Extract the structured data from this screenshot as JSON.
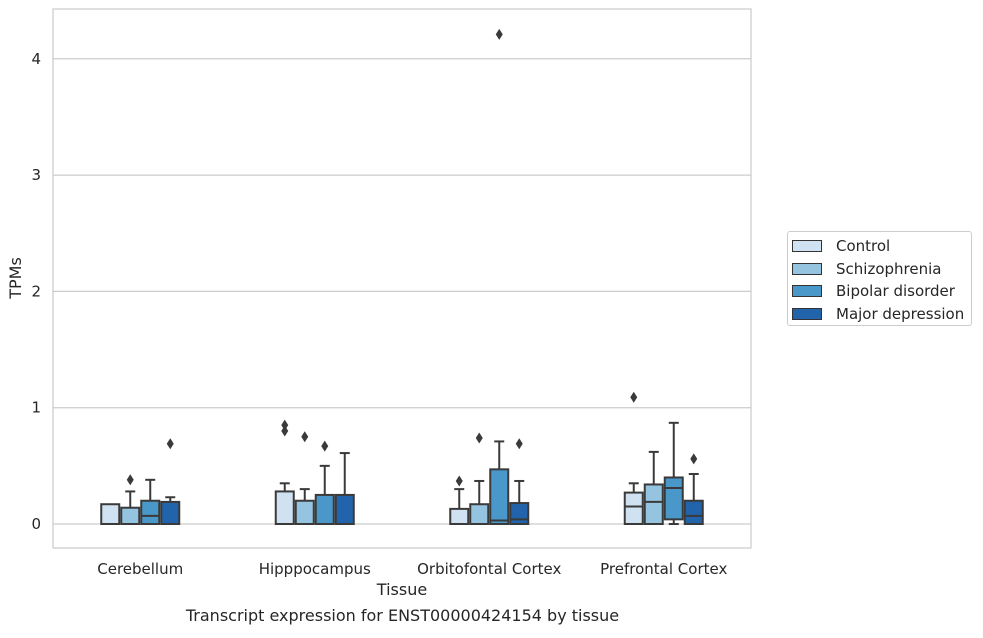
{
  "chart_data": {
    "type": "box",
    "xlabel": "Tissue",
    "ylabel": "TPMs",
    "caption": "Transcript expression for ENST00000424154 by tissue",
    "ylim": [
      -0.2,
      4.3
    ],
    "yticks": [
      0,
      1,
      2,
      3,
      4
    ],
    "grid": "horizontal",
    "legend_position": "right",
    "categories": [
      "Cerebellum",
      "Hipppocampus",
      "Orbitofontal Cortex",
      "Prefrontal Cortex"
    ],
    "series": [
      {
        "name": "Control",
        "color": "#d0e1f2",
        "boxes": [
          {
            "whislo": 0,
            "q1": 0,
            "med": 0,
            "q3": 0.17,
            "whishi": 0.17,
            "fliers": []
          },
          {
            "whislo": 0,
            "q1": 0,
            "med": 0,
            "q3": 0.28,
            "whishi": 0.35,
            "fliers": [
              0.8,
              0.85
            ]
          },
          {
            "whislo": 0,
            "q1": 0,
            "med": 0,
            "q3": 0.13,
            "whishi": 0.3,
            "fliers": [
              0.37
            ]
          },
          {
            "whislo": 0,
            "q1": 0,
            "med": 0.15,
            "q3": 0.27,
            "whishi": 0.35,
            "fliers": [
              1.09
            ]
          }
        ]
      },
      {
        "name": "Schizophrenia",
        "color": "#94c4df",
        "boxes": [
          {
            "whislo": 0,
            "q1": 0,
            "med": 0,
            "q3": 0.14,
            "whishi": 0.28,
            "fliers": [
              0.38
            ]
          },
          {
            "whislo": 0,
            "q1": 0,
            "med": 0,
            "q3": 0.2,
            "whishi": 0.3,
            "fliers": [
              0.75
            ]
          },
          {
            "whislo": 0,
            "q1": 0,
            "med": 0,
            "q3": 0.17,
            "whishi": 0.37,
            "fliers": [
              0.74
            ]
          },
          {
            "whislo": 0,
            "q1": 0,
            "med": 0.19,
            "q3": 0.34,
            "whishi": 0.62,
            "fliers": []
          }
        ]
      },
      {
        "name": "Bipolar disorder",
        "color": "#4a98c9",
        "boxes": [
          {
            "whislo": 0,
            "q1": 0,
            "med": 0.07,
            "q3": 0.2,
            "whishi": 0.38,
            "fliers": []
          },
          {
            "whislo": 0,
            "q1": 0,
            "med": 0,
            "q3": 0.25,
            "whishi": 0.5,
            "fliers": [
              0.67
            ]
          },
          {
            "whislo": 0,
            "q1": 0,
            "med": 0.03,
            "q3": 0.47,
            "whishi": 0.71,
            "fliers": [
              4.21
            ]
          },
          {
            "whislo": 0,
            "q1": 0.04,
            "med": 0.31,
            "q3": 0.4,
            "whishi": 0.87,
            "fliers": []
          }
        ]
      },
      {
        "name": "Major depression",
        "color": "#2164ab",
        "boxes": [
          {
            "whislo": 0,
            "q1": 0,
            "med": 0,
            "q3": 0.19,
            "whishi": 0.23,
            "fliers": [
              0.69
            ]
          },
          {
            "whislo": 0,
            "q1": 0,
            "med": 0,
            "q3": 0.25,
            "whishi": 0.61,
            "fliers": []
          },
          {
            "whislo": 0,
            "q1": 0,
            "med": 0.04,
            "q3": 0.18,
            "whishi": 0.37,
            "fliers": [
              0.69
            ]
          },
          {
            "whislo": 0,
            "q1": 0,
            "med": 0.07,
            "q3": 0.2,
            "whishi": 0.43,
            "fliers": [
              0.56
            ]
          }
        ]
      }
    ]
  }
}
